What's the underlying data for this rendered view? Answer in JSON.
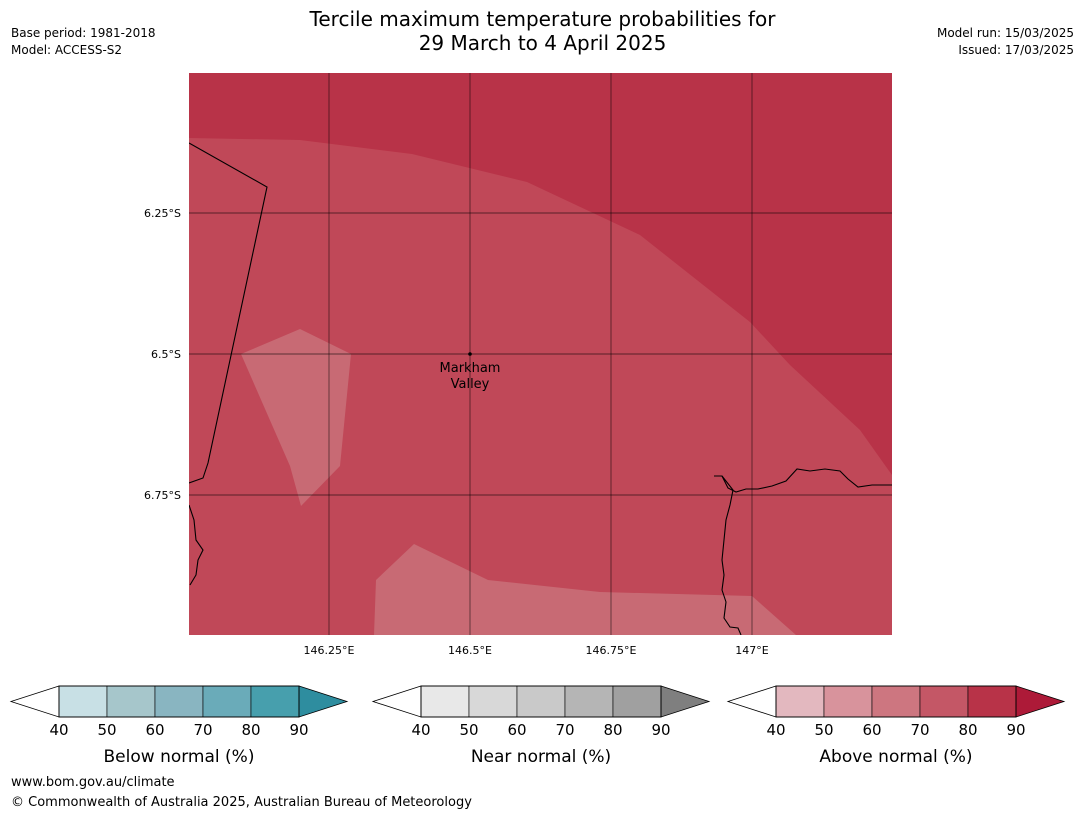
{
  "header": {
    "title_line1": "Tercile maximum temperature probabilities for",
    "title_line2": "29 March to 4 April 2025",
    "left_meta": [
      "Base period: 1981-2018",
      "Model: ACCESS-S2"
    ],
    "right_meta": [
      "Model run: 15/03/2025",
      "Issued: 17/03/2025"
    ]
  },
  "map": {
    "lon_ticks": [
      {
        "value": 146.25,
        "label": "146.25°E"
      },
      {
        "value": 146.5,
        "label": "146.5°E"
      },
      {
        "value": 146.75,
        "label": "146.75°E"
      },
      {
        "value": 147.0,
        "label": "147°E"
      }
    ],
    "lat_ticks": [
      {
        "value": -6.25,
        "label": "6.25°S"
      },
      {
        "value": -6.5,
        "label": "6.5°S"
      },
      {
        "value": -6.75,
        "label": "6.75°S"
      }
    ],
    "location": {
      "name_line1": "Markham",
      "name_line2": "Valley",
      "lon": 146.5,
      "lat": -6.5
    },
    "colors": {
      "above_60_70": "#c86a74",
      "above_70_80": "#c04858",
      "above_80_90": "#b83348",
      "border": "#000000",
      "grid": "#000000"
    }
  },
  "colorbars": [
    {
      "title": "Below normal (%)",
      "ticks": [
        "40",
        "50",
        "60",
        "70",
        "80",
        "90"
      ],
      "colors": [
        "#c8e0e5",
        "#a6c6cb",
        "#89b5c1",
        "#6aabb9",
        "#479fad",
        "#2e8d9f"
      ]
    },
    {
      "title": "Near normal (%)",
      "ticks": [
        "40",
        "50",
        "60",
        "70",
        "80",
        "90"
      ],
      "colors": [
        "#e8e8e8",
        "#d8d8d8",
        "#c9c9c9",
        "#b5b5b5",
        "#a0a0a0",
        "#7f7f7f"
      ]
    },
    {
      "title": "Above normal (%)",
      "ticks": [
        "40",
        "50",
        "60",
        "70",
        "80",
        "90"
      ],
      "colors": [
        "#e3b8bf",
        "#d8939c",
        "#cd7680",
        "#c45766",
        "#b83348",
        "#ad1a38"
      ]
    }
  ],
  "footer": {
    "website": "www.bom.gov.au/climate",
    "copyright": "© Commonwealth of Australia 2025, Australian Bureau of Meteorology"
  }
}
